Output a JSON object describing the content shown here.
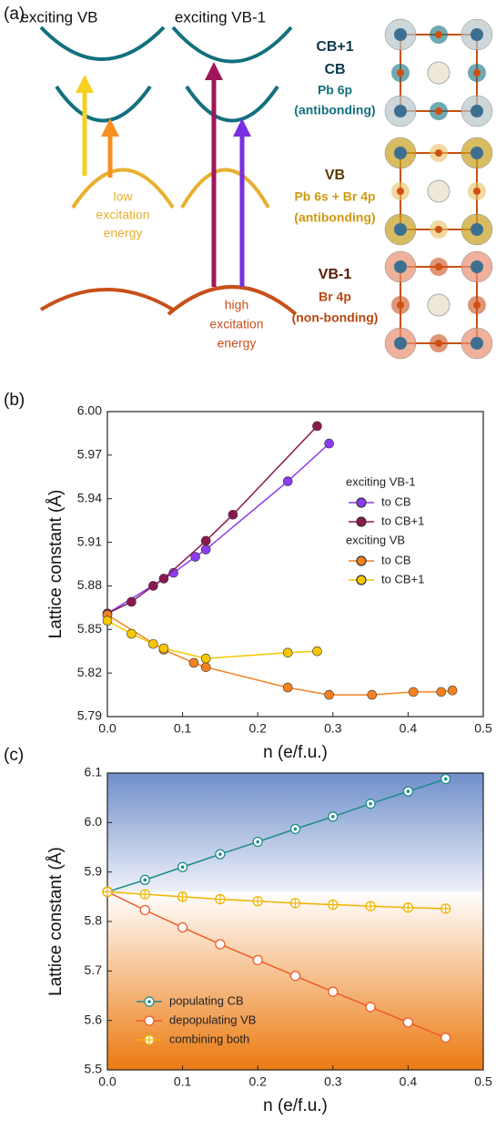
{
  "diagram": {
    "label": "(a)",
    "columns": [
      "exciting VB",
      "exciting VB-1"
    ],
    "cb_labels": [
      "CB+1",
      "CB",
      "Pb 6p",
      "(antibonding)"
    ],
    "vb_labels": [
      "VB",
      "Pb 6s + Br 4p",
      "(antibonding)"
    ],
    "vb1_labels": [
      "VB-1",
      "Br 4p",
      "(non-bonding)"
    ],
    "low_note": [
      "low",
      "excitation",
      "energy"
    ],
    "high_note": [
      "high",
      "excitation",
      "energy"
    ]
  },
  "chart_data": [
    {
      "type": "line",
      "label": "(b)",
      "xlabel": "n (e/f.u.)",
      "ylabel": "Lattice constant (Å)",
      "xlim": [
        0,
        0.5
      ],
      "ylim": [
        5.79,
        6.0
      ],
      "xticks": [
        {
          "value": 0,
          "label": "0.0"
        },
        0.1,
        0.2,
        0.3,
        0.4,
        0.5
      ],
      "yticks": [
        5.79,
        5.82,
        5.85,
        5.88,
        5.91,
        5.94,
        5.97,
        {
          "value": 6,
          "label": "6.00"
        }
      ],
      "series_groups": [
        {
          "title": "exciting VB-1",
          "series": [
            {
              "name": "to CB",
              "color": "#8a3cf0",
              "x": [
                0,
                0.088,
                0.117,
                0.131,
                0.24,
                0.295
              ],
              "values": [
                5.861,
                5.889,
                5.9,
                5.905,
                5.952,
                5.978
              ]
            },
            {
              "name": "to CB+1",
              "color": "#8c1850",
              "x": [
                0,
                0.032,
                0.061,
                0.075,
                0.131,
                0.167,
                0.279
              ],
              "values": [
                5.861,
                5.869,
                5.88,
                5.885,
                5.911,
                5.929,
                5.99
              ]
            }
          ]
        },
        {
          "title": "exciting VB",
          "series": [
            {
              "name": "to CB",
              "color": "#f58220",
              "x": [
                0,
                0.075,
                0.115,
                0.131,
                0.24,
                0.295,
                0.352,
                0.407,
                0.444,
                0.459
              ],
              "values": [
                5.86,
                5.836,
                5.827,
                5.824,
                5.81,
                5.805,
                5.805,
                5.807,
                5.807,
                5.808
              ]
            },
            {
              "name": "to CB+1",
              "color": "#f7c600",
              "x": [
                0,
                0.032,
                0.061,
                0.075,
                0.131,
                0.24,
                0.279
              ],
              "values": [
                5.856,
                5.847,
                5.84,
                5.837,
                5.83,
                5.834,
                5.835
              ]
            }
          ]
        }
      ]
    },
    {
      "type": "line",
      "label": "(c)",
      "xlabel": "n (e/f.u.)",
      "ylabel": "Lattice constant (Å)",
      "xlim": [
        0,
        0.5
      ],
      "ylim": [
        5.5,
        6.1
      ],
      "xticks": [
        {
          "value": 0,
          "label": "0.0"
        },
        0.1,
        0.2,
        0.3,
        0.4,
        0.5
      ],
      "yticks": [
        5.5,
        5.6,
        5.7,
        5.8,
        5.9,
        {
          "value": 6,
          "label": "6.0"
        },
        6.1
      ],
      "x": [
        0,
        0.05,
        0.1,
        0.15,
        0.2,
        0.25,
        0.3,
        0.35,
        0.4,
        0.45
      ],
      "series": [
        {
          "name": "populating CB",
          "color": "#1e8c8c",
          "marker": "dot",
          "values": [
            5.86,
            5.884,
            5.91,
            5.936,
            5.961,
            5.987,
            6.012,
            6.038,
            6.063,
            6.088
          ]
        },
        {
          "name": "depopulating VB",
          "color": "#f05a28",
          "marker": "circle",
          "values": [
            5.86,
            5.823,
            5.788,
            5.754,
            5.722,
            5.69,
            5.658,
            5.627,
            5.596,
            5.565
          ]
        },
        {
          "name": "combining both",
          "color": "#f0b400",
          "marker": "cross",
          "values": [
            5.86,
            5.855,
            5.85,
            5.845,
            5.841,
            5.837,
            5.834,
            5.831,
            5.828,
            5.826
          ]
        }
      ]
    }
  ]
}
